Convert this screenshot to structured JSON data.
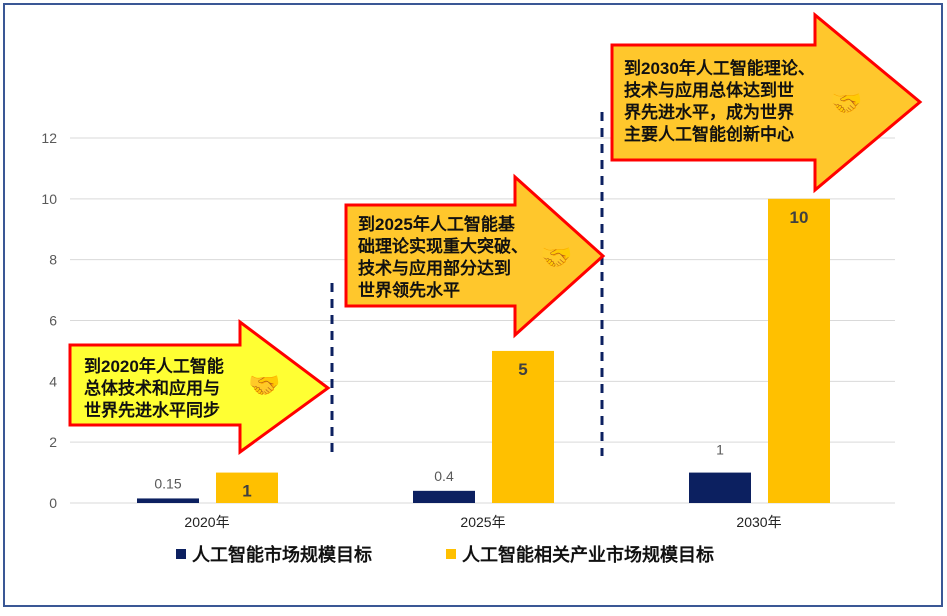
{
  "chart_data": {
    "type": "bar",
    "categories": [
      "2020年",
      "2025年",
      "2030年"
    ],
    "series": [
      {
        "name": "人工智能市场规模目标",
        "values": [
          0.15,
          0.4,
          1
        ],
        "color": "#0c2060"
      },
      {
        "name": "人工智能相关产业市场规模目标",
        "values": [
          1,
          5,
          10
        ],
        "color": "#ffc000"
      }
    ],
    "ylim": [
      0,
      12
    ],
    "yticks": [
      0,
      2,
      4,
      6,
      8,
      10,
      12
    ],
    "grid": true,
    "legend": "bottom"
  },
  "callouts": [
    {
      "text": "到2020年人工智能\n总体技术和应用与\n世界先进水平同步",
      "color": "#ffff33",
      "icon": "handshake-icon"
    },
    {
      "text": "到2025年人工智能基\n础理论实现重大突破、\n技术与应用部分达到\n世界领先水平",
      "color": "#ffc72c",
      "icon": "handshake-icon"
    },
    {
      "text": "到2030年人工智能理论、\n技术与应用总体达到世\n界先进水平，成为世界\n主要人工智能创新中心",
      "color": "#ffc72c",
      "icon": "handshake-icon"
    }
  ]
}
